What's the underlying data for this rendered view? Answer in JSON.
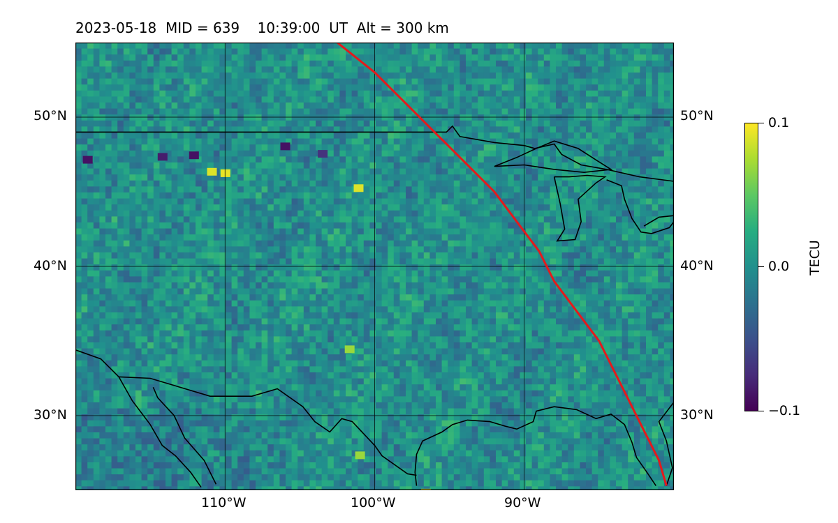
{
  "title": "2023-05-18  MID = 639    10:39:00  UT  Alt = 300 km",
  "map": {
    "lon_range": [
      -120,
      -80
    ],
    "lat_range": [
      25,
      55
    ],
    "field_name": "TECU",
    "colormap": "viridis",
    "lat_ticks": [
      {
        "value": 50,
        "label": "50°N"
      },
      {
        "value": 40,
        "label": "40°N"
      },
      {
        "value": 30,
        "label": "30°N"
      }
    ],
    "lon_ticks": [
      {
        "value": -110,
        "label": "110°W"
      },
      {
        "value": -100,
        "label": "100°W"
      },
      {
        "value": -90,
        "label": "90°W"
      }
    ],
    "track_color": "#e41a1c",
    "track": [
      [
        -102.5,
        55
      ],
      [
        -100,
        53
      ],
      [
        -98,
        51
      ],
      [
        -96,
        49
      ],
      [
        -94,
        47
      ],
      [
        -92,
        45
      ],
      [
        -90.5,
        43
      ],
      [
        -89,
        41
      ],
      [
        -88,
        39
      ],
      [
        -86.5,
        37
      ],
      [
        -85,
        35
      ],
      [
        -83.5,
        32
      ],
      [
        -82,
        29
      ],
      [
        -81,
        27
      ],
      [
        -80.5,
        25.3
      ]
    ],
    "coastlines": [
      [
        [
          -120,
          49
        ],
        [
          -95.2,
          49
        ],
        [
          -94.8,
          49.4
        ],
        [
          -94.3,
          48.7
        ],
        [
          -92,
          48.3
        ],
        [
          -90,
          48.1
        ],
        [
          -89.3,
          47.9
        ],
        [
          -88,
          48.2
        ],
        [
          -87.5,
          47.5
        ],
        [
          -86.2,
          46.8
        ],
        [
          -84.5,
          46.5
        ],
        [
          -82.3,
          46
        ],
        [
          -80,
          45.7
        ]
      ],
      [
        [
          -92,
          46.7
        ],
        [
          -90.5,
          47.3
        ],
        [
          -89.2,
          47.9
        ],
        [
          -88,
          48.4
        ],
        [
          -86.4,
          47.9
        ],
        [
          -85,
          47
        ],
        [
          -84.2,
          46.5
        ],
        [
          -86,
          46.3
        ],
        [
          -88,
          46.5
        ],
        [
          -90,
          46.8
        ],
        [
          -92,
          46.7
        ]
      ],
      [
        [
          -88,
          46
        ],
        [
          -87.6,
          44.2
        ],
        [
          -87.3,
          42.5
        ],
        [
          -87.8,
          41.7
        ],
        [
          -86.6,
          41.8
        ],
        [
          -86.2,
          43
        ],
        [
          -86.4,
          44.5
        ],
        [
          -85.2,
          45.6
        ],
        [
          -84.6,
          46
        ],
        [
          -85.8,
          46.1
        ],
        [
          -87,
          46
        ],
        [
          -88,
          46
        ]
      ],
      [
        [
          -84.5,
          45.8
        ],
        [
          -83.5,
          45.4
        ],
        [
          -83.3,
          44.5
        ],
        [
          -82.8,
          43.2
        ],
        [
          -82.2,
          42.3
        ],
        [
          -81.5,
          42.2
        ],
        [
          -80.3,
          42.6
        ],
        [
          -80,
          43
        ]
      ],
      [
        [
          -80,
          43.4
        ],
        [
          -81,
          43.3
        ],
        [
          -82,
          42.7
        ]
      ],
      [
        [
          -120,
          34.4
        ],
        [
          -118.3,
          33.8
        ],
        [
          -117.1,
          32.6
        ],
        [
          -116.2,
          31
        ],
        [
          -115,
          29.4
        ],
        [
          -114.2,
          28
        ],
        [
          -113.3,
          27.3
        ],
        [
          -112.3,
          26.2
        ],
        [
          -111.6,
          25.2
        ]
      ],
      [
        [
          -114.8,
          31.9
        ],
        [
          -114.5,
          31.2
        ],
        [
          -113.4,
          30
        ],
        [
          -112.7,
          28.5
        ],
        [
          -111.4,
          27
        ],
        [
          -110.6,
          25.4
        ]
      ],
      [
        [
          -117.1,
          32.6
        ],
        [
          -115,
          32.5
        ],
        [
          -111,
          31.3
        ],
        [
          -108.2,
          31.3
        ],
        [
          -106.5,
          31.8
        ],
        [
          -104.8,
          30.6
        ],
        [
          -104,
          29.6
        ],
        [
          -103,
          28.9
        ],
        [
          -102.2,
          29.8
        ],
        [
          -101.5,
          29.6
        ],
        [
          -100,
          28
        ],
        [
          -99.5,
          27.3
        ],
        [
          -97.8,
          26.1
        ],
        [
          -97.2,
          26
        ]
      ],
      [
        [
          -97.2,
          25.3
        ],
        [
          -97.3,
          26.2
        ],
        [
          -97.2,
          27.4
        ],
        [
          -96.8,
          28.3
        ],
        [
          -95.5,
          28.9
        ],
        [
          -94.8,
          29.4
        ],
        [
          -93.8,
          29.7
        ],
        [
          -92.3,
          29.6
        ],
        [
          -91.3,
          29.3
        ],
        [
          -90.5,
          29.1
        ],
        [
          -89.4,
          29.6
        ],
        [
          -89.2,
          30.3
        ],
        [
          -88,
          30.6
        ],
        [
          -86.5,
          30.4
        ],
        [
          -85.2,
          29.8
        ],
        [
          -84.2,
          30.1
        ],
        [
          -83.3,
          29.4
        ],
        [
          -82.8,
          28.2
        ],
        [
          -82.5,
          27.2
        ],
        [
          -81.8,
          26.2
        ],
        [
          -81.2,
          25.3
        ]
      ],
      [
        [
          -80.5,
          25.3
        ],
        [
          -80.1,
          26.5
        ],
        [
          -80.5,
          28.3
        ],
        [
          -81,
          29.6
        ],
        [
          -80,
          30.9
        ]
      ]
    ],
    "pixel_seed": 639
  },
  "colorbar": {
    "label": "TECU",
    "ticks": [
      {
        "value": 0.1,
        "label": "0.1"
      },
      {
        "value": 0.0,
        "label": "0.0"
      },
      {
        "value": -0.1,
        "label": "−0.1"
      }
    ]
  }
}
